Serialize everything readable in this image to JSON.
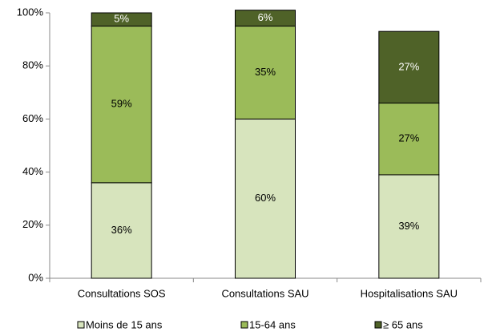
{
  "chart_data": {
    "type": "stacked_bar",
    "categories": [
      "Consultations SOS",
      "Consultations SAU",
      "Hospitalisations SAU"
    ],
    "series": [
      {
        "name": "Moins de 15 ans",
        "color": "#d7e4bd",
        "values": [
          36,
          60,
          39
        ],
        "value_labels": [
          "36%",
          "60%",
          "39%"
        ]
      },
      {
        "name": "15-64 ans",
        "color": "#9bbb59",
        "values": [
          59,
          35,
          27
        ],
        "value_labels": [
          "59%",
          "35%",
          "27%"
        ]
      },
      {
        "name": "≥ 65 ans",
        "color": "#4f6228",
        "values": [
          5,
          6,
          27
        ],
        "value_labels": [
          "5%",
          "6%",
          "27%"
        ]
      }
    ],
    "ylim": [
      0,
      100
    ],
    "yticks": [
      {
        "value": 0,
        "label": "0%"
      },
      {
        "value": 20,
        "label": "20%"
      },
      {
        "value": 40,
        "label": "40%"
      },
      {
        "value": 60,
        "label": "60%"
      },
      {
        "value": 80,
        "label": "80%"
      },
      {
        "value": 100,
        "label": "100%"
      }
    ],
    "legend": "bottom"
  }
}
